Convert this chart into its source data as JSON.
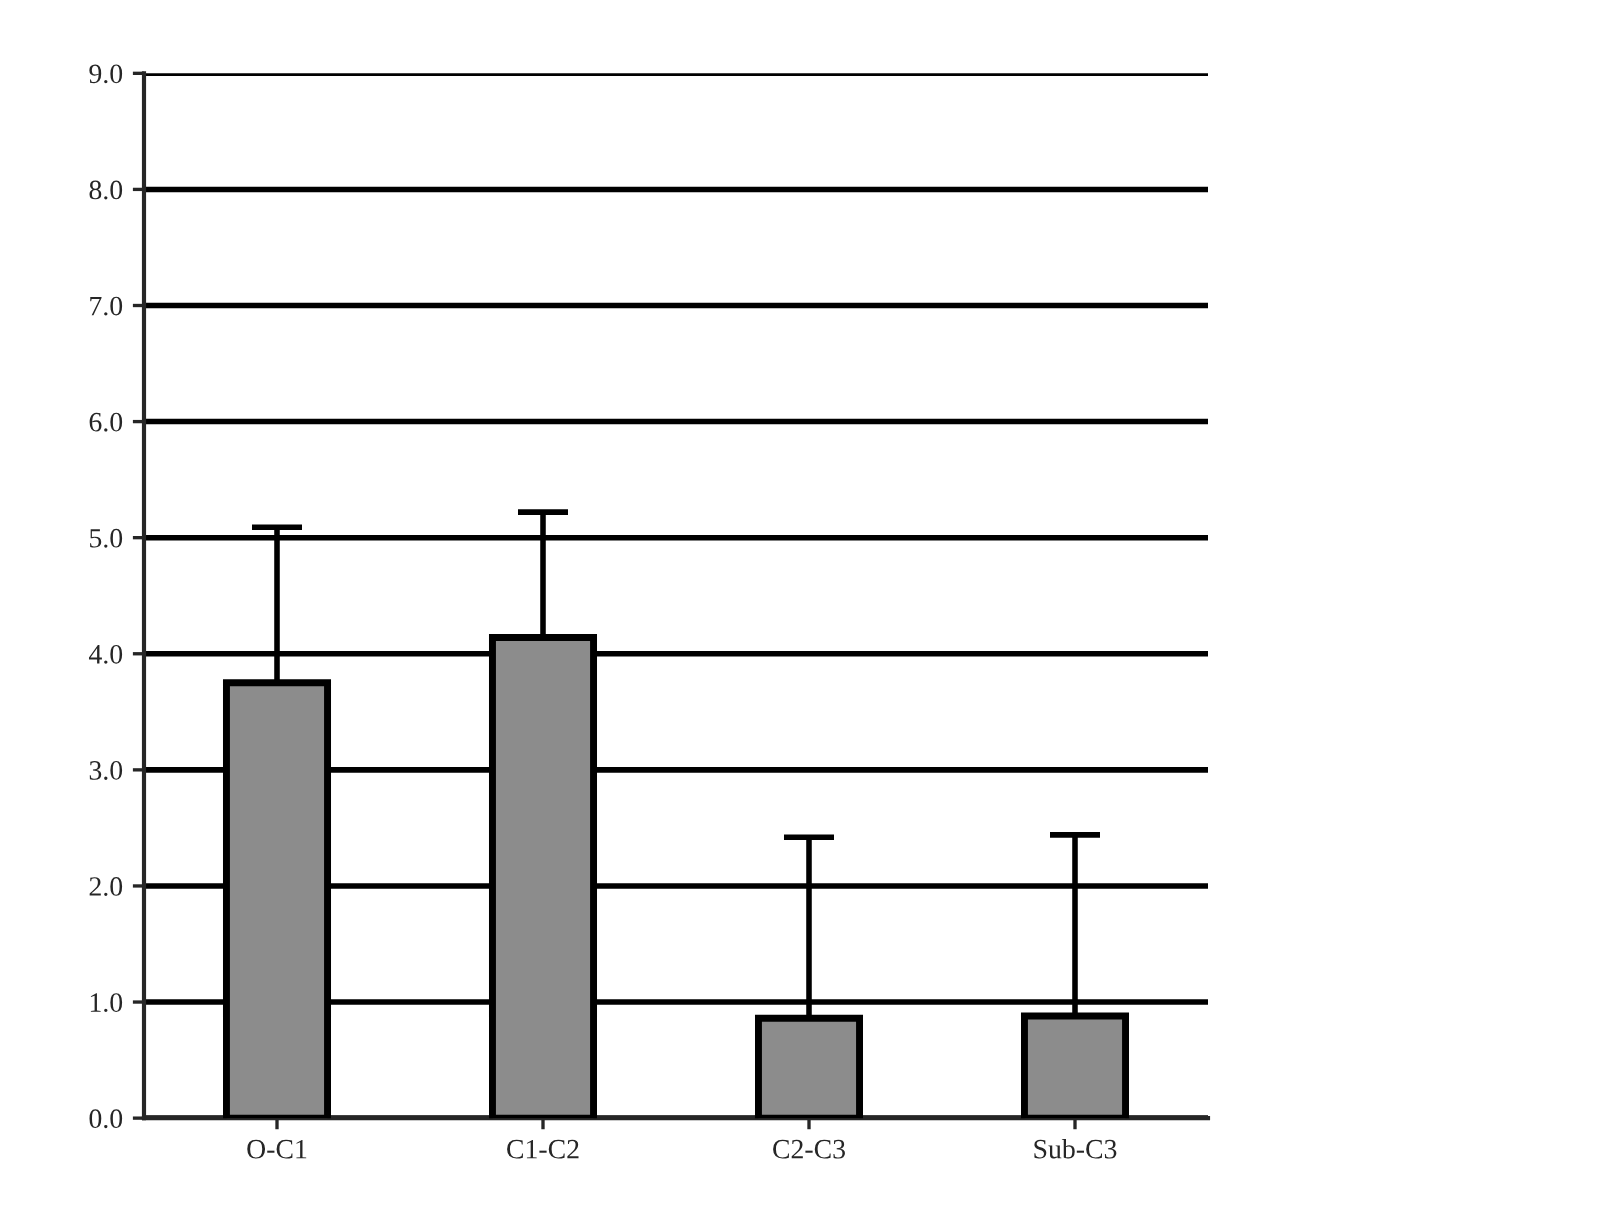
{
  "chart_data": {
    "type": "bar",
    "categories": [
      "O-C1",
      "C1-C2",
      "C2-C3",
      "Sub-C3"
    ],
    "series": [
      {
        "color": "#8c8c8c",
        "values": [
          3.75,
          4.14,
          0.86,
          0.88
        ],
        "errors": [
          [
            3.75,
            5.09
          ],
          [
            4.14,
            5.22
          ],
          [
            0.86,
            2.42
          ],
          [
            0.88,
            2.44
          ]
        ]
      }
    ],
    "ylim": [
      0,
      9
    ],
    "yticks": [
      {
        "value": 0,
        "label": "0.0"
      },
      {
        "value": 1,
        "label": "1.0"
      },
      {
        "value": 2,
        "label": "2.0"
      },
      {
        "value": 3,
        "label": "3.0"
      },
      {
        "value": 4,
        "label": "4.0"
      },
      {
        "value": 5,
        "label": "5.0"
      },
      {
        "value": 6,
        "label": "6.0"
      },
      {
        "value": 7,
        "label": "7.0"
      },
      {
        "value": 8,
        "label": "8.0"
      },
      {
        "value": 9,
        "label": "9.0"
      }
    ],
    "grid": "y"
  }
}
